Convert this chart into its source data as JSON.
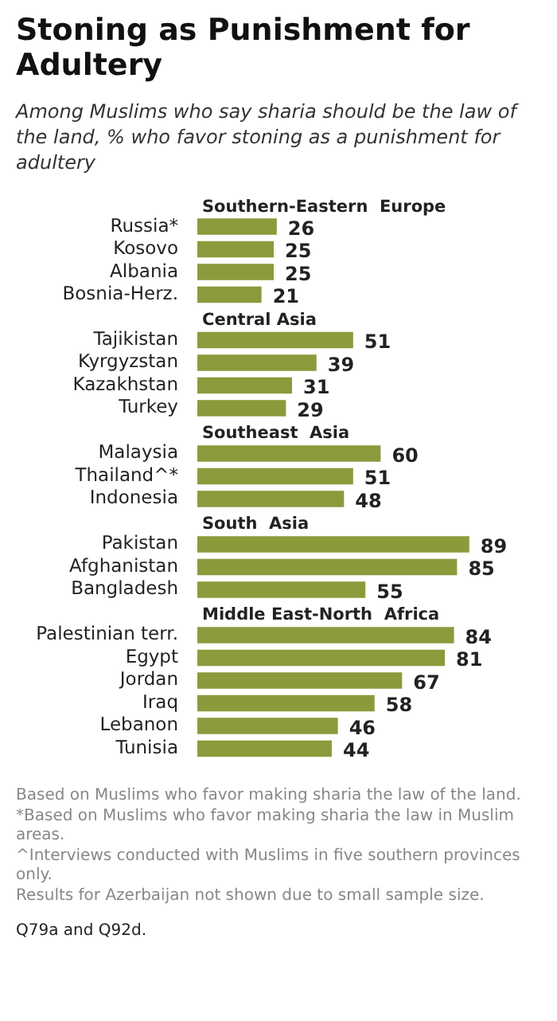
{
  "chart_data": {
    "type": "bar",
    "orientation": "horizontal",
    "title": "Stoning as Punishment for Adultery",
    "subtitle": "Among Muslims who say sharia should be the law of the land, % who favor stoning as a punishment for adultery",
    "categories": [
      "Southern-Eastern  Europe",
      "Russia*",
      "Kosovo",
      "Albania",
      "Bosnia-Herz.",
      "Central Asia",
      "Tajikistan",
      "Kyrgyzstan",
      "Kazakhstan",
      "Turkey",
      "Southeast  Asia",
      "Malaysia",
      "Thailand^*",
      "Indonesia",
      "South  Asia",
      "Pakistan",
      "Afghanistan",
      "Bangladesh",
      "Middle East-North  Africa",
      "Palestinian terr.",
      "Egypt",
      "Jordan",
      "Iraq",
      "Lebanon",
      "Tunisia"
    ],
    "values": [
      null,
      26,
      25,
      25,
      21,
      null,
      51,
      39,
      31,
      29,
      null,
      60,
      51,
      48,
      null,
      89,
      85,
      55,
      null,
      84,
      81,
      67,
      58,
      46,
      44
    ],
    "color": "#8c9a3c",
    "tick_labels": "y",
    "data_labels": true,
    "annotations": [
      "Based on Muslims who  favor making sharia the law of the land.",
      "*Based on Muslims who  favor making sharia the law in Muslim areas.",
      "^Interviews conducted with Muslims in five  southern provinces only.",
      "Results for Azerbaijan not shown due to small sample size.",
      "Q79a and Q92d."
    ]
  }
}
